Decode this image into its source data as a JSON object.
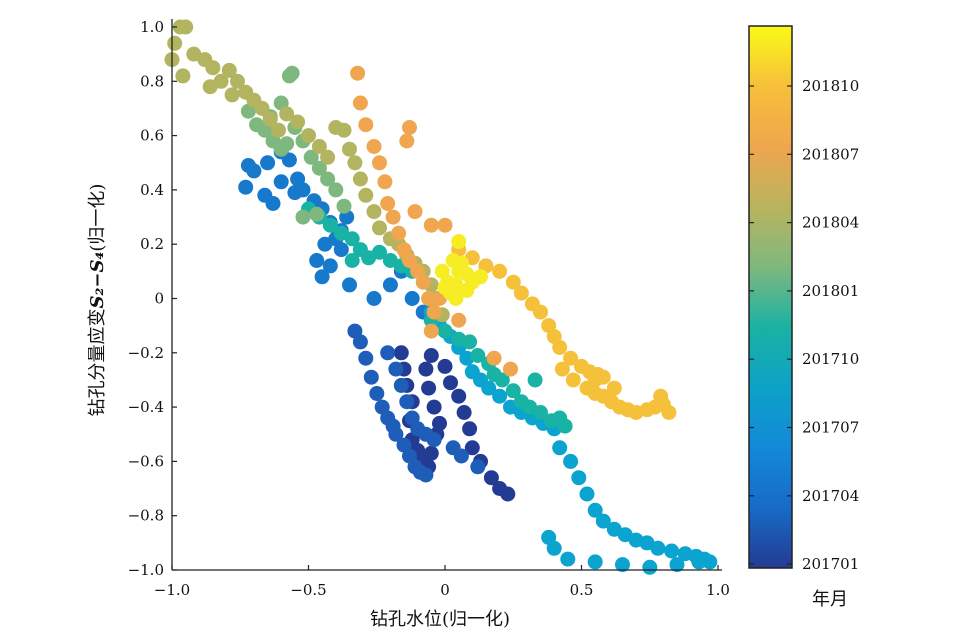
{
  "chart_data": {
    "type": "scatter",
    "xlabel": "钻孔水位(归一化)",
    "ylabel_prefix": "钻孔分量应变",
    "ylabel_math": "S₂−S₄",
    "ylabel_suffix": "(归一化)",
    "xlim": [
      -1.0,
      1.0
    ],
    "ylim": [
      -1.0,
      1.0
    ],
    "xticks": [
      "−1.0",
      "−0.5",
      "0",
      "0.5",
      "1.0"
    ],
    "yticks": [
      "1.0",
      "0.8",
      "0.6",
      "0.4",
      "0.2",
      "0",
      "−0.2",
      "−0.4",
      "−0.6",
      "−0.8",
      "−1.0"
    ],
    "colorbar": {
      "label": "年月",
      "ticks": [
        "201810",
        "201807",
        "201804",
        "201801",
        "201710",
        "201707",
        "201704",
        "201701"
      ],
      "colors": [
        "#f9fa16",
        "#f7bf3a",
        "#efa64e",
        "#b9b45d",
        "#7fb87e",
        "#1ab2a2",
        "#0da2c8",
        "#1389d8",
        "#176bc6",
        "#243b93"
      ]
    },
    "series": [
      {
        "color": "#243b93",
        "points": [
          [
            -0.16,
            -0.2
          ],
          [
            -0.15,
            -0.26
          ],
          [
            -0.14,
            -0.32
          ],
          [
            -0.12,
            -0.38
          ],
          [
            -0.13,
            -0.45
          ],
          [
            -0.12,
            -0.52
          ],
          [
            -0.1,
            -0.56
          ],
          [
            -0.09,
            -0.6
          ],
          [
            -0.06,
            -0.62
          ],
          [
            -0.05,
            -0.57
          ],
          [
            -0.03,
            -0.5
          ],
          [
            -0.02,
            -0.46
          ],
          [
            -0.04,
            -0.4
          ],
          [
            -0.06,
            -0.33
          ],
          [
            -0.07,
            -0.26
          ],
          [
            -0.05,
            -0.21
          ],
          [
            0.0,
            -0.25
          ],
          [
            0.02,
            -0.31
          ],
          [
            0.05,
            -0.36
          ],
          [
            0.07,
            -0.42
          ],
          [
            0.09,
            -0.48
          ],
          [
            0.1,
            -0.55
          ],
          [
            0.13,
            -0.6
          ],
          [
            0.17,
            -0.66
          ],
          [
            0.2,
            -0.7
          ],
          [
            0.23,
            -0.72
          ]
        ]
      },
      {
        "color": "#1e5db8",
        "points": [
          [
            -0.33,
            -0.12
          ],
          [
            -0.31,
            -0.16
          ],
          [
            -0.29,
            -0.22
          ],
          [
            -0.27,
            -0.29
          ],
          [
            -0.25,
            -0.35
          ],
          [
            -0.23,
            -0.4
          ],
          [
            -0.21,
            -0.44
          ],
          [
            -0.19,
            -0.47
          ],
          [
            -0.18,
            -0.5
          ],
          [
            -0.15,
            -0.54
          ],
          [
            -0.13,
            -0.58
          ],
          [
            -0.11,
            -0.62
          ],
          [
            -0.09,
            -0.64
          ],
          [
            -0.07,
            -0.65
          ],
          [
            -0.21,
            -0.2
          ],
          [
            -0.18,
            -0.26
          ],
          [
            -0.16,
            -0.32
          ],
          [
            -0.14,
            -0.38
          ],
          [
            -0.12,
            -0.44
          ],
          [
            -0.1,
            -0.48
          ],
          [
            -0.07,
            -0.5
          ],
          [
            -0.04,
            -0.52
          ],
          [
            0.03,
            -0.55
          ],
          [
            0.06,
            -0.58
          ],
          [
            0.12,
            -0.62
          ]
        ]
      },
      {
        "color": "#1779cc",
        "points": [
          [
            -0.72,
            0.49
          ],
          [
            -0.7,
            0.47
          ],
          [
            -0.65,
            0.5
          ],
          [
            -0.6,
            0.54
          ],
          [
            -0.57,
            0.51
          ],
          [
            -0.54,
            0.44
          ],
          [
            -0.52,
            0.4
          ],
          [
            -0.48,
            0.36
          ],
          [
            -0.45,
            0.33
          ],
          [
            -0.42,
            0.28
          ],
          [
            -0.4,
            0.22
          ],
          [
            -0.38,
            0.18
          ],
          [
            -0.42,
            0.12
          ],
          [
            -0.45,
            0.08
          ],
          [
            -0.47,
            0.14
          ],
          [
            -0.44,
            0.2
          ],
          [
            -0.38,
            0.25
          ],
          [
            -0.36,
            0.3
          ],
          [
            -0.35,
            0.05
          ],
          [
            -0.26,
            0.0
          ],
          [
            -0.2,
            0.05
          ],
          [
            -0.16,
            0.1
          ],
          [
            -0.12,
            0.0
          ],
          [
            -0.08,
            -0.05
          ],
          [
            -0.73,
            0.41
          ],
          [
            -0.66,
            0.38
          ],
          [
            -0.63,
            0.35
          ],
          [
            -0.6,
            0.43
          ],
          [
            -0.55,
            0.39
          ]
        ]
      },
      {
        "color": "#0ba3cf",
        "points": [
          [
            -0.05,
            -0.05
          ],
          [
            -0.02,
            -0.1
          ],
          [
            0.02,
            -0.14
          ],
          [
            0.05,
            -0.18
          ],
          [
            0.08,
            -0.22
          ],
          [
            0.1,
            -0.27
          ],
          [
            0.13,
            -0.3
          ],
          [
            0.16,
            -0.33
          ],
          [
            0.2,
            -0.36
          ],
          [
            0.24,
            -0.4
          ],
          [
            0.28,
            -0.42
          ],
          [
            0.32,
            -0.44
          ],
          [
            0.36,
            -0.46
          ],
          [
            0.4,
            -0.48
          ],
          [
            0.42,
            -0.55
          ],
          [
            0.46,
            -0.6
          ],
          [
            0.49,
            -0.66
          ],
          [
            0.52,
            -0.72
          ],
          [
            0.55,
            -0.78
          ],
          [
            0.58,
            -0.82
          ],
          [
            0.62,
            -0.85
          ],
          [
            0.66,
            -0.87
          ],
          [
            0.7,
            -0.89
          ],
          [
            0.74,
            -0.9
          ],
          [
            0.78,
            -0.92
          ],
          [
            0.83,
            -0.93
          ],
          [
            0.88,
            -0.94
          ],
          [
            0.92,
            -0.95
          ],
          [
            0.95,
            -0.96
          ],
          [
            0.97,
            -0.97
          ],
          [
            0.38,
            -0.88
          ],
          [
            0.4,
            -0.92
          ],
          [
            0.45,
            -0.96
          ],
          [
            0.55,
            -0.97
          ],
          [
            0.65,
            -0.98
          ],
          [
            0.75,
            -0.99
          ],
          [
            0.85,
            -0.98
          ],
          [
            0.93,
            -0.97
          ]
        ]
      },
      {
        "color": "#18b3a4",
        "points": [
          [
            -0.5,
            0.33
          ],
          [
            -0.46,
            0.3
          ],
          [
            -0.42,
            0.27
          ],
          [
            -0.38,
            0.24
          ],
          [
            -0.34,
            0.22
          ],
          [
            -0.31,
            0.18
          ],
          [
            -0.28,
            0.15
          ],
          [
            -0.34,
            0.14
          ],
          [
            -0.24,
            0.17
          ],
          [
            -0.2,
            0.14
          ],
          [
            -0.16,
            0.12
          ],
          [
            -0.12,
            0.1
          ],
          [
            -0.05,
            -0.08
          ],
          [
            0.0,
            -0.12
          ],
          [
            0.05,
            -0.15
          ],
          [
            0.09,
            -0.16
          ],
          [
            0.12,
            -0.21
          ],
          [
            0.16,
            -0.24
          ],
          [
            0.18,
            -0.28
          ],
          [
            0.21,
            -0.3
          ],
          [
            0.25,
            -0.34
          ],
          [
            0.28,
            -0.38
          ],
          [
            0.31,
            -0.4
          ],
          [
            0.35,
            -0.42
          ],
          [
            0.39,
            -0.45
          ],
          [
            0.42,
            -0.44
          ],
          [
            0.44,
            -0.47
          ],
          [
            0.33,
            -0.3
          ]
        ]
      },
      {
        "color": "#7fb87e",
        "points": [
          [
            -0.66,
            0.62
          ],
          [
            -0.63,
            0.58
          ],
          [
            -0.6,
            0.55
          ],
          [
            -0.58,
            0.57
          ],
          [
            -0.55,
            0.63
          ],
          [
            -0.52,
            0.58
          ],
          [
            -0.49,
            0.52
          ],
          [
            -0.46,
            0.48
          ],
          [
            -0.43,
            0.44
          ],
          [
            -0.4,
            0.4
          ],
          [
            -0.37,
            0.34
          ],
          [
            -0.57,
            0.82
          ],
          [
            -0.56,
            0.83
          ],
          [
            -0.6,
            0.72
          ],
          [
            -0.64,
            0.67
          ],
          [
            -0.69,
            0.64
          ],
          [
            -0.72,
            0.69
          ],
          [
            -0.52,
            0.3
          ],
          [
            -0.47,
            0.31
          ]
        ]
      },
      {
        "color": "#b3b460",
        "points": [
          [
            -1.0,
            0.88
          ],
          [
            -0.99,
            0.94
          ],
          [
            -0.97,
            1.0
          ],
          [
            -0.95,
            1.0
          ],
          [
            -0.92,
            0.9
          ],
          [
            -0.88,
            0.88
          ],
          [
            -0.85,
            0.85
          ],
          [
            -0.82,
            0.8
          ],
          [
            -0.79,
            0.84
          ],
          [
            -0.76,
            0.8
          ],
          [
            -0.73,
            0.76
          ],
          [
            -0.7,
            0.73
          ],
          [
            -0.67,
            0.7
          ],
          [
            -0.64,
            0.66
          ],
          [
            -0.61,
            0.62
          ],
          [
            -0.58,
            0.68
          ],
          [
            -0.54,
            0.65
          ],
          [
            -0.5,
            0.6
          ],
          [
            -0.46,
            0.56
          ],
          [
            -0.43,
            0.52
          ],
          [
            -0.4,
            0.63
          ],
          [
            -0.37,
            0.62
          ],
          [
            -0.35,
            0.55
          ],
          [
            -0.33,
            0.5
          ],
          [
            -0.31,
            0.44
          ],
          [
            -0.29,
            0.38
          ],
          [
            -0.26,
            0.32
          ],
          [
            -0.24,
            0.26
          ],
          [
            -0.2,
            0.22
          ],
          [
            -0.17,
            0.2
          ],
          [
            -0.14,
            0.16
          ],
          [
            -0.11,
            0.13
          ],
          [
            -0.08,
            0.1
          ],
          [
            -0.05,
            0.05
          ],
          [
            -0.03,
            0.0
          ],
          [
            -0.01,
            -0.06
          ],
          [
            -0.96,
            0.82
          ],
          [
            -0.86,
            0.78
          ],
          [
            -0.78,
            0.75
          ]
        ]
      },
      {
        "color": "#efa64e",
        "points": [
          [
            -0.32,
            0.83
          ],
          [
            -0.31,
            0.72
          ],
          [
            -0.29,
            0.64
          ],
          [
            -0.26,
            0.56
          ],
          [
            -0.24,
            0.5
          ],
          [
            -0.22,
            0.43
          ],
          [
            -0.21,
            0.35
          ],
          [
            -0.19,
            0.3
          ],
          [
            -0.17,
            0.24
          ],
          [
            -0.15,
            0.18
          ],
          [
            -0.13,
            0.14
          ],
          [
            -0.1,
            0.1
          ],
          [
            -0.08,
            0.06
          ],
          [
            -0.06,
            0.0
          ],
          [
            -0.04,
            -0.05
          ],
          [
            -0.05,
            -0.12
          ],
          [
            -0.14,
            0.58
          ],
          [
            -0.13,
            0.63
          ],
          [
            -0.11,
            0.32
          ],
          [
            -0.05,
            0.27
          ],
          [
            0.0,
            0.27
          ],
          [
            -0.02,
            0.0
          ],
          [
            0.05,
            -0.08
          ],
          [
            0.18,
            -0.22
          ],
          [
            0.24,
            -0.26
          ]
        ]
      },
      {
        "color": "#f6c13a",
        "points": [
          [
            0.05,
            0.18
          ],
          [
            0.1,
            0.15
          ],
          [
            0.15,
            0.12
          ],
          [
            0.2,
            0.1
          ],
          [
            0.25,
            0.06
          ],
          [
            0.28,
            0.02
          ],
          [
            0.32,
            -0.02
          ],
          [
            0.35,
            -0.05
          ],
          [
            0.38,
            -0.1
          ],
          [
            0.4,
            -0.14
          ],
          [
            0.42,
            -0.18
          ],
          [
            0.46,
            -0.22
          ],
          [
            0.5,
            -0.25
          ],
          [
            0.53,
            -0.27
          ],
          [
            0.56,
            -0.28
          ],
          [
            0.58,
            -0.29
          ],
          [
            0.55,
            -0.3
          ],
          [
            0.52,
            -0.33
          ],
          [
            0.55,
            -0.35
          ],
          [
            0.58,
            -0.36
          ],
          [
            0.61,
            -0.38
          ],
          [
            0.64,
            -0.4
          ],
          [
            0.67,
            -0.41
          ],
          [
            0.7,
            -0.42
          ],
          [
            0.74,
            -0.41
          ],
          [
            0.77,
            -0.4
          ],
          [
            0.8,
            -0.39
          ],
          [
            0.82,
            -0.42
          ],
          [
            0.79,
            -0.36
          ],
          [
            0.62,
            -0.33
          ],
          [
            0.47,
            -0.3
          ],
          [
            0.43,
            -0.26
          ]
        ]
      },
      {
        "color": "#f7ed25",
        "points": [
          [
            -0.01,
            0.1
          ],
          [
            0.01,
            0.06
          ],
          [
            0.02,
            0.02
          ],
          [
            0.04,
            0.05
          ],
          [
            0.05,
            0.1
          ],
          [
            0.06,
            0.13
          ],
          [
            0.08,
            0.09
          ],
          [
            0.03,
            0.14
          ],
          [
            0.0,
            0.04
          ],
          [
            0.05,
            0.21
          ],
          [
            0.04,
            0.0
          ],
          [
            0.1,
            0.06
          ],
          [
            0.13,
            0.08
          ],
          [
            0.08,
            0.03
          ]
        ]
      }
    ]
  }
}
